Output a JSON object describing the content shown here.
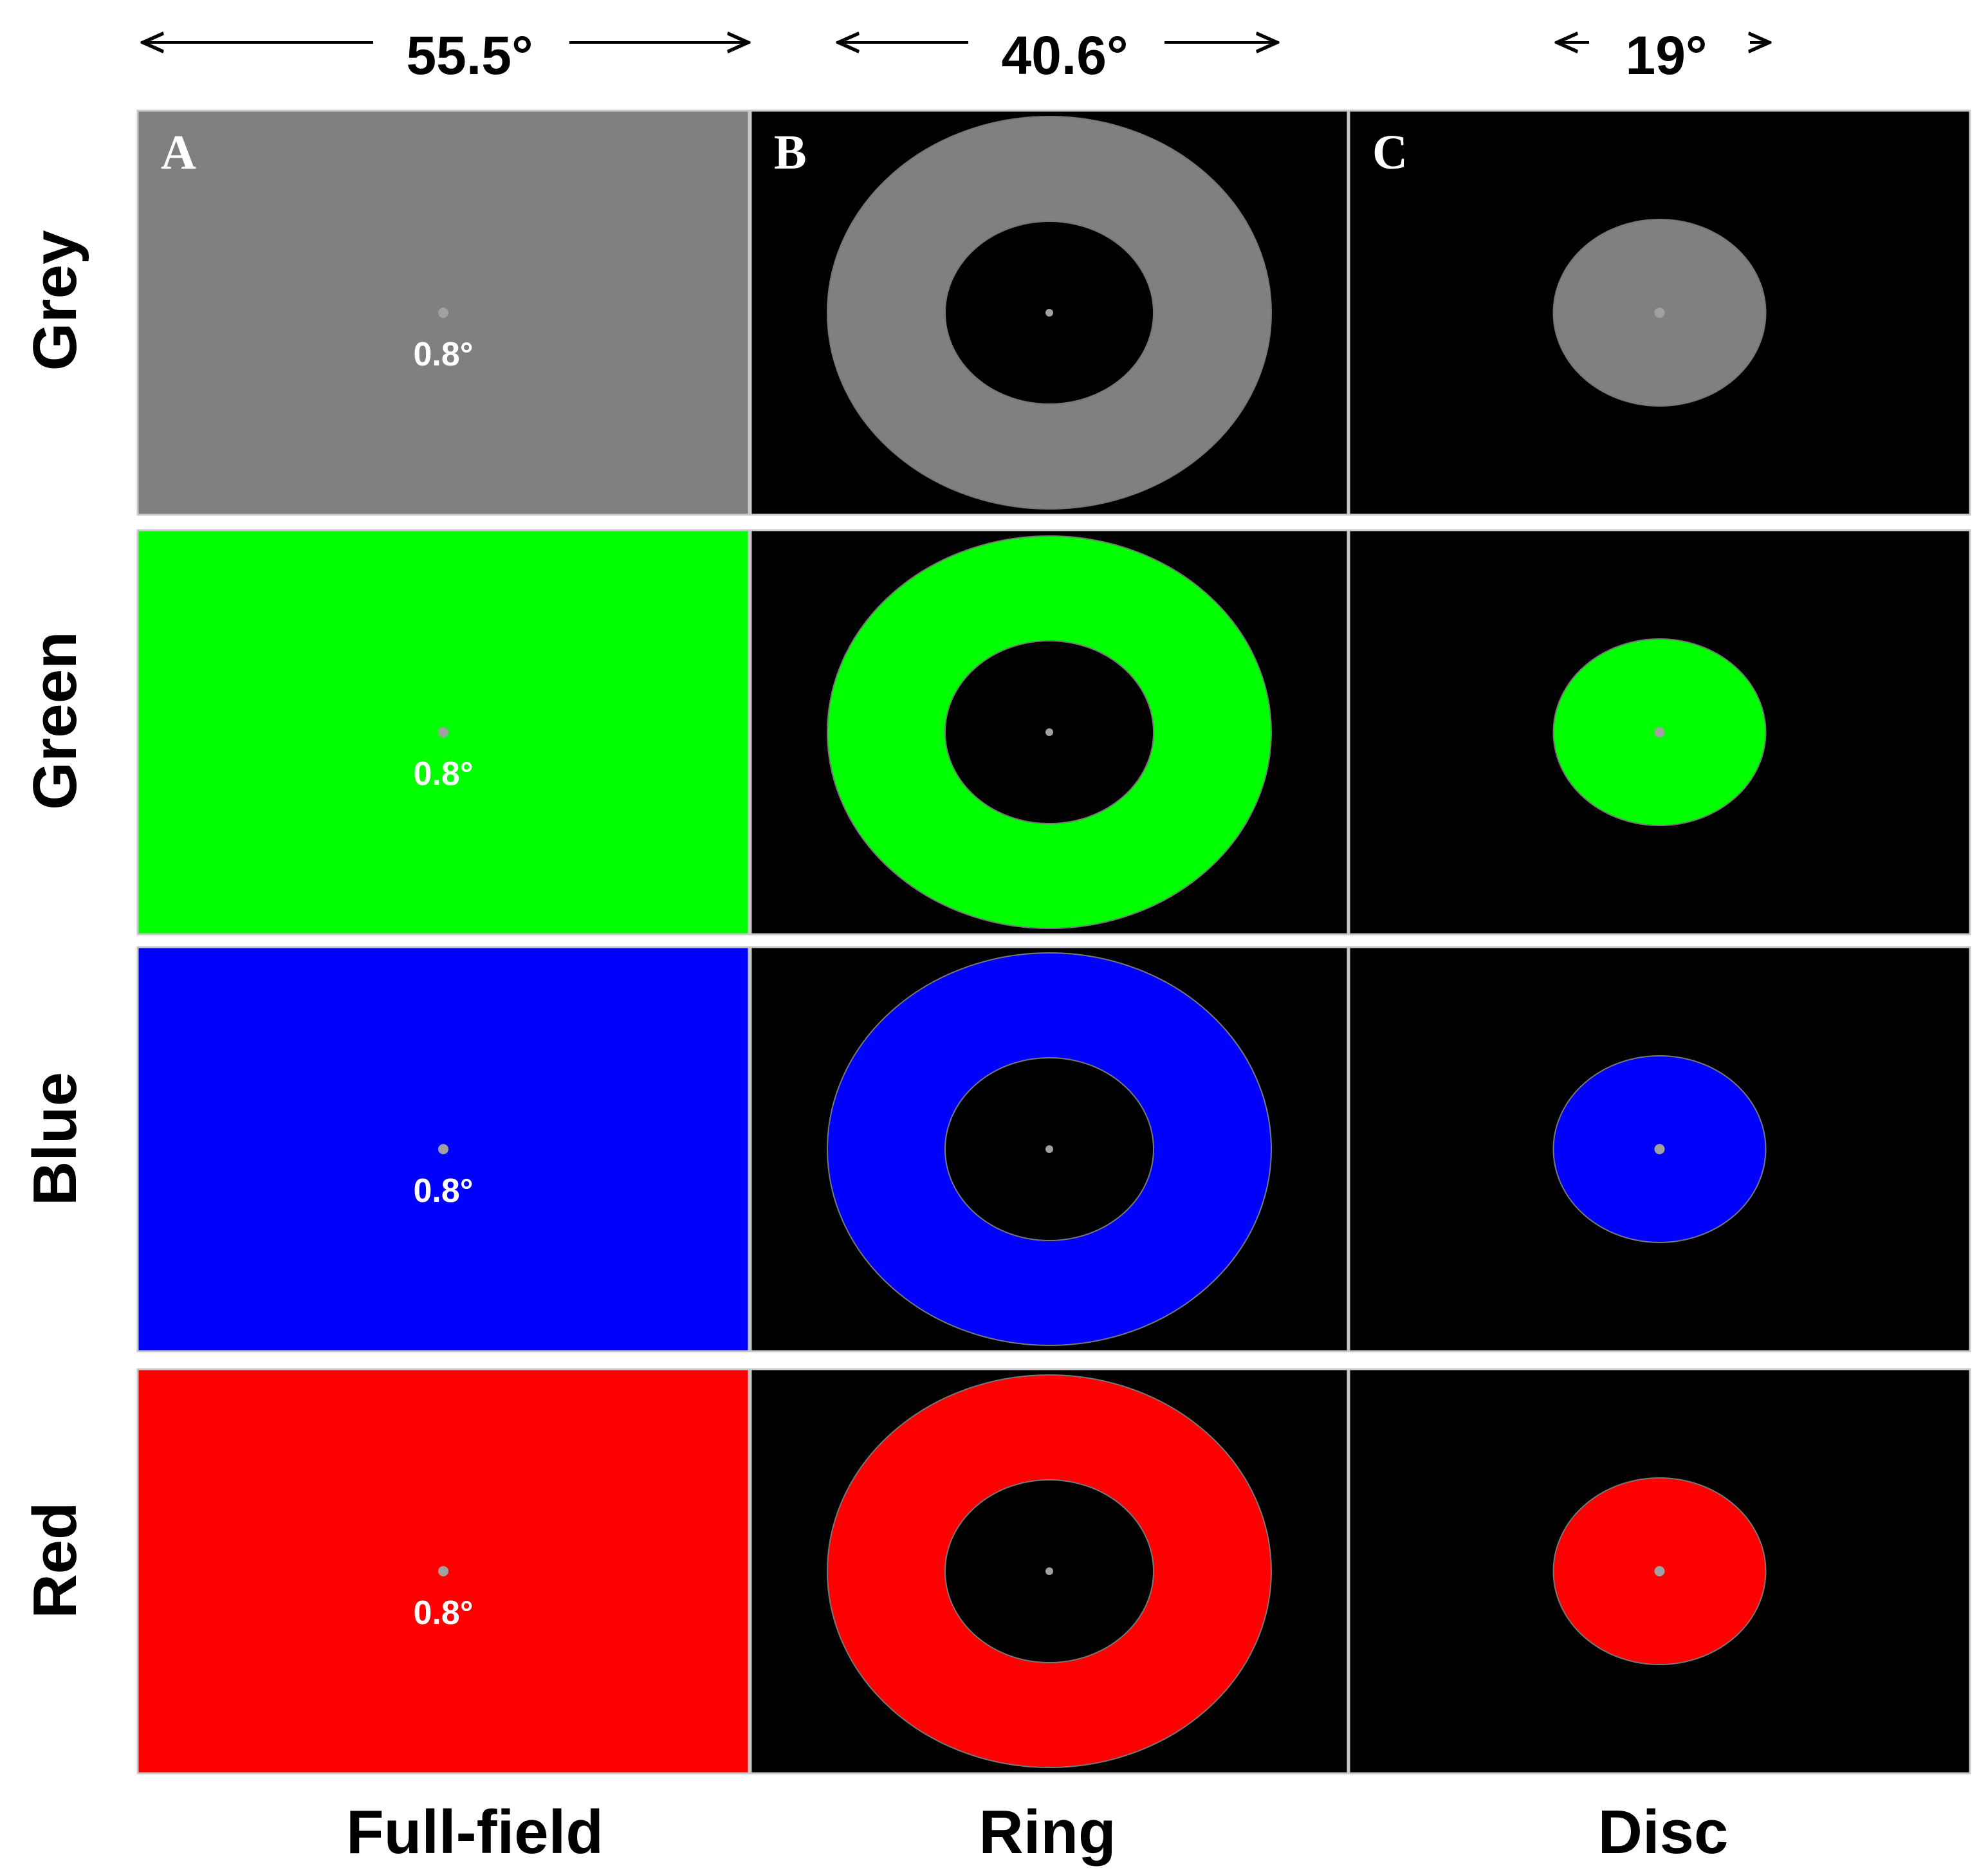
{
  "top_dimensions": [
    {
      "label": "55.5°"
    },
    {
      "label": "40.6°"
    },
    {
      "label": "19°"
    }
  ],
  "columns": [
    {
      "panel_letter": "A",
      "stimulus": "Full-field",
      "label": "Full-field"
    },
    {
      "panel_letter": "B",
      "stimulus": "Ring",
      "label": "Ring"
    },
    {
      "panel_letter": "C",
      "stimulus": "Disc",
      "label": "Disc"
    }
  ],
  "rows": [
    {
      "label": "Grey",
      "color": "#808080",
      "fixation_label": "0.8°"
    },
    {
      "label": "Green",
      "color": "#00ff00",
      "fixation_label": "0.8°"
    },
    {
      "label": "Blue",
      "color": "#0000ff",
      "fixation_label": "0.8°"
    },
    {
      "label": "Red",
      "color": "#ff0000",
      "fixation_label": "0.8°"
    }
  ],
  "colors": {
    "panel_background": "#000000",
    "fixation_dot": "#a0a0a0",
    "panel_border": "#c8c8c8",
    "text": "#000000",
    "panel_text": "#ffffff"
  }
}
